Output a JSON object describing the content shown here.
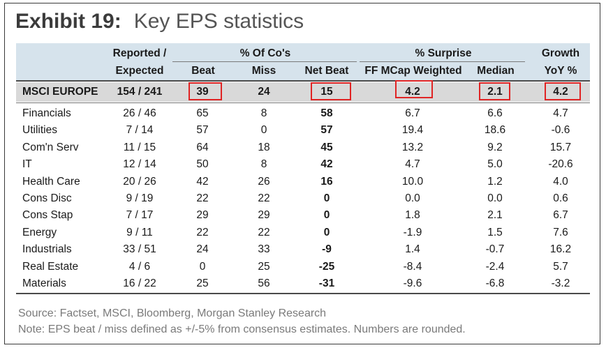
{
  "title": {
    "exhibit": "Exhibit 19:",
    "text": "Key EPS statistics"
  },
  "header": {
    "group_reported": "Reported /",
    "sub_expected": "Expected",
    "group_pct_cos": "% Of Co's",
    "sub_beat": "Beat",
    "sub_miss": "Miss",
    "sub_net_beat": "Net Beat",
    "group_surprise": "% Surprise",
    "sub_ff_mcap": "FF MCap Weighted",
    "sub_median": "Median",
    "group_growth": "Growth",
    "sub_yoy": "YoY %"
  },
  "summary_row": {
    "name": "MSCI EUROPE",
    "reported": "154 / 241",
    "beat": "39",
    "miss": "24",
    "net_beat": "15",
    "ff_mcap": "4.2",
    "median": "2.1",
    "growth": "4.2"
  },
  "rows": [
    {
      "name": "Financials",
      "reported": "26 / 46",
      "beat": "65",
      "miss": "8",
      "net_beat": "58",
      "ff_mcap": "6.7",
      "median": "6.6",
      "growth": "4.7"
    },
    {
      "name": "Utilities",
      "reported": "7 / 14",
      "beat": "57",
      "miss": "0",
      "net_beat": "57",
      "ff_mcap": "19.4",
      "median": "18.6",
      "growth": "-0.6"
    },
    {
      "name": "Com'n Serv",
      "reported": "11 / 15",
      "beat": "64",
      "miss": "18",
      "net_beat": "45",
      "ff_mcap": "13.2",
      "median": "9.2",
      "growth": "15.7"
    },
    {
      "name": "IT",
      "reported": "12 / 14",
      "beat": "50",
      "miss": "8",
      "net_beat": "42",
      "ff_mcap": "4.7",
      "median": "5.0",
      "growth": "-20.6"
    },
    {
      "name": "Health Care",
      "reported": "20 / 26",
      "beat": "42",
      "miss": "26",
      "net_beat": "16",
      "ff_mcap": "10.0",
      "median": "1.2",
      "growth": "4.0"
    },
    {
      "name": "Cons Disc",
      "reported": "9 / 19",
      "beat": "22",
      "miss": "22",
      "net_beat": "0",
      "ff_mcap": "0.0",
      "median": "0.0",
      "growth": "0.6"
    },
    {
      "name": "Cons Stap",
      "reported": "7 / 17",
      "beat": "29",
      "miss": "29",
      "net_beat": "0",
      "ff_mcap": "1.8",
      "median": "2.1",
      "growth": "6.7"
    },
    {
      "name": "Energy",
      "reported": "9 / 11",
      "beat": "22",
      "miss": "22",
      "net_beat": "0",
      "ff_mcap": "-1.9",
      "median": "1.5",
      "growth": "7.6"
    },
    {
      "name": "Industrials",
      "reported": "33 / 51",
      "beat": "24",
      "miss": "33",
      "net_beat": "-9",
      "ff_mcap": "1.4",
      "median": "-0.7",
      "growth": "16.2"
    },
    {
      "name": "Real Estate",
      "reported": "4 / 6",
      "beat": "0",
      "miss": "25",
      "net_beat": "-25",
      "ff_mcap": "-8.4",
      "median": "-2.4",
      "growth": "5.7"
    },
    {
      "name": "Materials",
      "reported": "16 / 22",
      "beat": "25",
      "miss": "56",
      "net_beat": "-31",
      "ff_mcap": "-9.6",
      "median": "-6.8",
      "growth": "-3.2"
    }
  ],
  "footer": {
    "source": "Source: Factset, MSCI, Bloomberg, Morgan Stanley Research",
    "note": "Note: EPS beat / miss defined as +/-5% from consensus estimates. Numbers are rounded."
  },
  "colors": {
    "header_band": "#d6e3ec",
    "summary_band": "#d9d9d9",
    "highlight_box": "#e02424"
  }
}
